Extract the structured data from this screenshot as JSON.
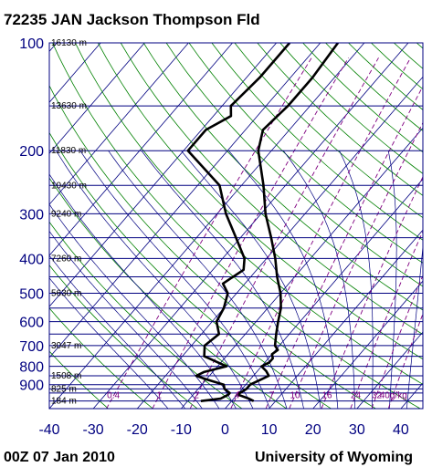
{
  "header": {
    "title": "72235 JAN Jackson Thompson Fld"
  },
  "footer": {
    "left": "00Z 07 Jan 2010",
    "right": "University of Wyoming"
  },
  "colors": {
    "isobar": "#000080",
    "isotherm": "#000080",
    "dry_adiabat": "#008000",
    "moist_adiabat": "#000080",
    "mixing_ratio": "#800080",
    "temperature": "#000000",
    "dewpoint": "#000000",
    "axis_text": "#000080"
  },
  "chart_data": {
    "type": "line",
    "title": "72235 JAN Jackson Thompson Fld",
    "xlabel": "",
    "ylabel": "",
    "x_axis": {
      "scale": "skew-T temperature (°C)",
      "xlim": [
        -40,
        45
      ],
      "ticks": [
        -40,
        -30,
        -20,
        -10,
        0,
        10,
        20,
        30,
        40
      ]
    },
    "y_axis": {
      "scale": "log pressure (hPa), inverted",
      "ylim": [
        1050,
        100
      ],
      "tick_labels": [
        100,
        200,
        300,
        400,
        500,
        600,
        700,
        800,
        900
      ]
    },
    "isobars_hpa": [
      100,
      150,
      200,
      250,
      300,
      350,
      400,
      450,
      500,
      550,
      600,
      650,
      700,
      750,
      800,
      850,
      900,
      925,
      950,
      1000
    ],
    "height_labels": [
      {
        "p": 100,
        "label": "16130 m"
      },
      {
        "p": 150,
        "label": "13630 m"
      },
      {
        "p": 200,
        "label": "11830 m"
      },
      {
        "p": 250,
        "label": "10430 m"
      },
      {
        "p": 300,
        "label": "9240 m"
      },
      {
        "p": 400,
        "label": "7260 m"
      },
      {
        "p": 500,
        "label": "5630 m"
      },
      {
        "p": 700,
        "label": "3047 m"
      },
      {
        "p": 850,
        "label": "1508 m"
      },
      {
        "p": 925,
        "label": "825 m"
      },
      {
        "p": 1000,
        "label": "184 m"
      }
    ],
    "mixing_ratio_labels": [
      "0.4",
      "1",
      "2",
      "4",
      "7",
      "10",
      "16",
      "24",
      "32",
      "40g/kg"
    ],
    "series": [
      {
        "name": "Temperature",
        "points": [
          [
            1000,
            5
          ],
          [
            985,
            3.5
          ],
          [
            960,
            0.2
          ],
          [
            950,
            0.3
          ],
          [
            925,
            1
          ],
          [
            900,
            1
          ],
          [
            870,
            2.5
          ],
          [
            850,
            3.5
          ],
          [
            825,
            2
          ],
          [
            800,
            0
          ],
          [
            780,
            1
          ],
          [
            760,
            1
          ],
          [
            740,
            0
          ],
          [
            720,
            0.5
          ],
          [
            700,
            -1
          ],
          [
            650,
            -3
          ],
          [
            600,
            -5
          ],
          [
            550,
            -7
          ],
          [
            500,
            -10
          ],
          [
            450,
            -14
          ],
          [
            400,
            -18
          ],
          [
            350,
            -23
          ],
          [
            300,
            -29
          ],
          [
            250,
            -35
          ],
          [
            200,
            -43
          ],
          [
            175,
            -46
          ],
          [
            150,
            -45
          ],
          [
            125,
            -45
          ],
          [
            100,
            -46
          ]
        ]
      },
      {
        "name": "Dewpoint",
        "points": [
          [
            1000,
            -7
          ],
          [
            985,
            -3
          ],
          [
            960,
            -2
          ],
          [
            950,
            -2
          ],
          [
            925,
            -4
          ],
          [
            900,
            -5
          ],
          [
            870,
            -10
          ],
          [
            850,
            -13
          ],
          [
            830,
            -12
          ],
          [
            800,
            -8
          ],
          [
            750,
            -15
          ],
          [
            700,
            -17
          ],
          [
            650,
            -16
          ],
          [
            600,
            -19
          ],
          [
            550,
            -20
          ],
          [
            500,
            -22
          ],
          [
            470,
            -25
          ],
          [
            430,
            -23
          ],
          [
            400,
            -25
          ],
          [
            350,
            -31
          ],
          [
            300,
            -38
          ],
          [
            250,
            -45
          ],
          [
            200,
            -59
          ],
          [
            175,
            -59
          ],
          [
            160,
            -56
          ],
          [
            150,
            -58
          ],
          [
            125,
            -57
          ],
          [
            100,
            -57
          ]
        ]
      }
    ]
  }
}
